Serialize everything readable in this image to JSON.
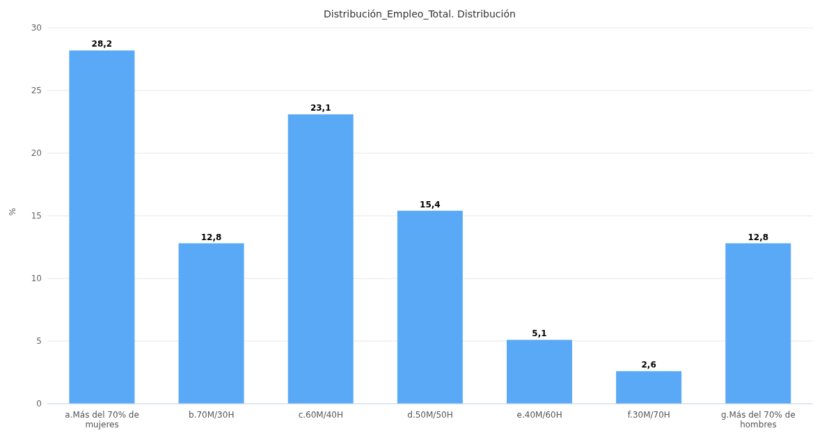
{
  "chart_data": {
    "type": "bar",
    "title": "Distribución_Empleo_Total. Distribución",
    "ylabel": "%",
    "categories": [
      "a.Más del 70% de mujeres",
      "b.70M/30H",
      "c.60M/40H",
      "d.50M/50H",
      "e.40M/60H",
      "f.30M/70H",
      "g.Más del 70% de hombres"
    ],
    "values": [
      28.2,
      12.8,
      23.1,
      15.4,
      5.1,
      2.6,
      12.8
    ],
    "value_labels": [
      "28,2",
      "12,8",
      "23,1",
      "15,4",
      "5,1",
      "2,6",
      "12,8"
    ],
    "color": "#5aa9f7",
    "ylim": [
      0,
      30
    ],
    "yticks": [
      0,
      5,
      10,
      15,
      20,
      25,
      30
    ],
    "grid": "y"
  }
}
